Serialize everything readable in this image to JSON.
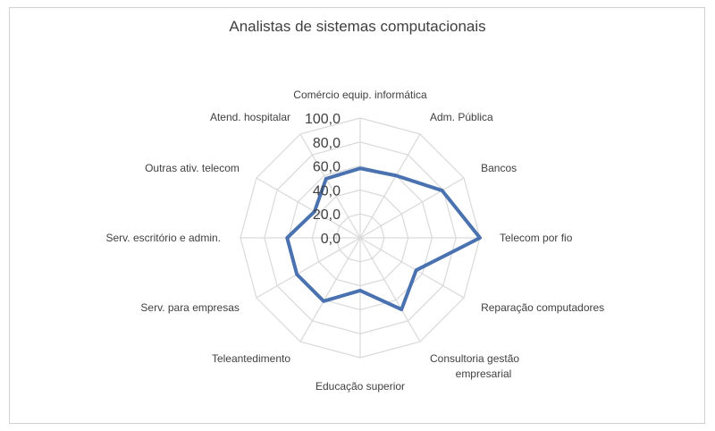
{
  "chart_data": {
    "type": "radar",
    "title": "Analistas de sistemas computacionais",
    "categories": [
      "Comércio equip. informática",
      "Adm. Pública",
      "Bancos",
      "Telecom por fio",
      "Reparação computadores",
      "Consultoria gestão empresarial",
      "Educação superior",
      "Teleantedimento",
      "Serv. para empresas",
      "Serv. escritório e admin.",
      "Outras ativ. telecom",
      "Atend. hospitalar"
    ],
    "series": [
      {
        "values": [
          58,
          60,
          79,
          100,
          54,
          69,
          44,
          61,
          61,
          61,
          44,
          57
        ],
        "color": "#4a72b0"
      }
    ],
    "ylim": [
      0,
      100
    ],
    "ticks": [
      "0,0",
      "20,0",
      "40,0",
      "60,0",
      "80,0",
      "100,0"
    ],
    "grid": true,
    "legend": "none"
  }
}
